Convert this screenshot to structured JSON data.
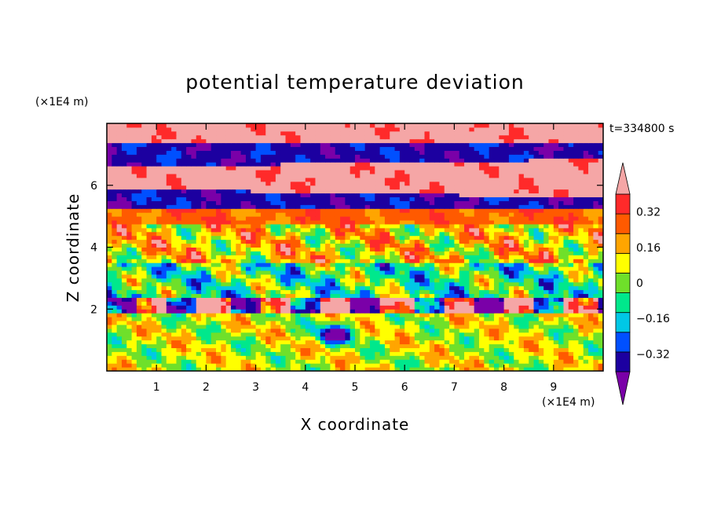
{
  "chart_data": {
    "type": "heatmap",
    "title": "potential temperature deviation",
    "xlabel": "X coordinate",
    "ylabel": "Z coordinate",
    "x_unit": "(×1E4 m)",
    "y_unit": "(×1E4 m)",
    "time_label": "t=334800 s",
    "xlim": [
      0,
      10
    ],
    "ylim": [
      0,
      8
    ],
    "xticks": [
      1,
      2,
      3,
      4,
      5,
      6,
      7,
      8,
      9
    ],
    "yticks": [
      2,
      4,
      6
    ],
    "grid": false,
    "colorbar": {
      "position": "right",
      "levels": [
        -0.4,
        -0.32,
        -0.24,
        -0.16,
        -0.08,
        0,
        0.08,
        0.16,
        0.24,
        0.32,
        0.4
      ],
      "tick_labels": [
        "0.32",
        "0.16",
        "0",
        "−0.16",
        "−0.32"
      ],
      "tick_values": [
        0.32,
        0.16,
        0,
        -0.16,
        -0.32
      ],
      "colors_low_to_high": [
        "#7a00a8",
        "#1c00a0",
        "#0050ff",
        "#00c8e6",
        "#00e88c",
        "#6fe02a",
        "#ffff00",
        "#ffa500",
        "#ff5a00",
        "#ff2a2a",
        "#f5a6a6"
      ],
      "extend": "both"
    },
    "bands": [
      {
        "z0": 7.4,
        "z1": 8.0,
        "level": "high"
      },
      {
        "z0": 6.6,
        "z1": 7.4,
        "level": "low"
      },
      {
        "z0": 5.9,
        "z1": 6.6,
        "level": "high"
      },
      {
        "z0": 5.3,
        "z1": 5.9,
        "level": "low"
      },
      {
        "z0": 4.7,
        "z1": 5.3,
        "level": "mid-high"
      },
      {
        "z0": 3.5,
        "z1": 4.7,
        "level": "mid"
      },
      {
        "z0": 2.4,
        "z1": 3.5,
        "level": "mid-low"
      },
      {
        "z0": 1.9,
        "z1": 2.4,
        "level": "mixed extremes"
      },
      {
        "z0": 0.0,
        "z1": 1.9,
        "level": "near zero"
      }
    ]
  }
}
